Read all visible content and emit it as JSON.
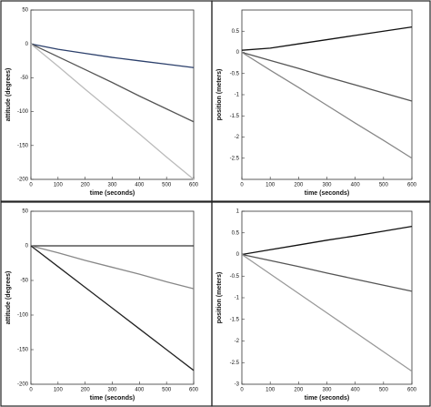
{
  "chart_data": [
    {
      "type": "line",
      "y_label": "attitude (degrees)",
      "x_label": "time (seconds)",
      "x": [
        0,
        100,
        200,
        300,
        400,
        500,
        600
      ],
      "xlim": [
        0,
        600
      ],
      "xticks": [
        0,
        100,
        200,
        300,
        400,
        500,
        600
      ],
      "ylim": [
        -200,
        50
      ],
      "yticks": [
        50,
        0,
        -50,
        -100,
        -150,
        -200
      ],
      "series": [
        {
          "color": "#2b3f6b",
          "values": [
            0,
            -8,
            -14,
            -20,
            -25,
            -30,
            -35
          ]
        },
        {
          "color": "#555555",
          "values": [
            0,
            -19,
            -38,
            -57,
            -77,
            -96,
            -115
          ]
        },
        {
          "color": "#bbbbbb",
          "values": [
            0,
            -33,
            -67,
            -100,
            -133,
            -167,
            -200
          ]
        }
      ]
    },
    {
      "type": "line",
      "y_label": "position (meters)",
      "x_label": "time (seconds)",
      "x": [
        0,
        100,
        200,
        300,
        400,
        500,
        600
      ],
      "xlim": [
        0,
        600
      ],
      "xticks": [
        0,
        100,
        200,
        300,
        400,
        500,
        600
      ],
      "ylim": [
        -3,
        1
      ],
      "yticks": [
        0.5,
        0,
        -0.5,
        -1,
        -1.5,
        -2,
        -2.5
      ],
      "series": [
        {
          "color": "#111111",
          "values": [
            0.05,
            0.1,
            0.2,
            0.3,
            0.4,
            0.5,
            0.6
          ]
        },
        {
          "color": "#555555",
          "values": [
            0,
            -0.19,
            -0.38,
            -0.58,
            -0.77,
            -0.96,
            -1.15
          ]
        },
        {
          "color": "#888888",
          "values": [
            0,
            -0.42,
            -0.83,
            -1.25,
            -1.67,
            -2.08,
            -2.5
          ]
        }
      ]
    },
    {
      "type": "line",
      "y_label": "attitude (degrees)",
      "x_label": "time (seconds)",
      "x": [
        0,
        100,
        200,
        300,
        400,
        500,
        600
      ],
      "xlim": [
        0,
        600
      ],
      "xticks": [
        0,
        100,
        200,
        300,
        400,
        500,
        600
      ],
      "ylim": [
        -200,
        50
      ],
      "yticks": [
        50,
        0,
        -50,
        -100,
        -150,
        -200
      ],
      "series": [
        {
          "color": "#333333",
          "values": [
            0,
            0,
            0,
            0,
            0,
            0,
            0
          ]
        },
        {
          "color": "#888888",
          "values": [
            0,
            -10,
            -21,
            -31,
            -41,
            -52,
            -62
          ]
        },
        {
          "color": "#222222",
          "values": [
            0,
            -30,
            -60,
            -90,
            -120,
            -150,
            -180
          ]
        }
      ]
    },
    {
      "type": "line",
      "y_label": "position (meters)",
      "x_label": "time (seconds)",
      "x": [
        0,
        100,
        200,
        300,
        400,
        500,
        600
      ],
      "xlim": [
        0,
        600
      ],
      "xticks": [
        0,
        100,
        200,
        300,
        400,
        500,
        600
      ],
      "ylim": [
        -3,
        1
      ],
      "yticks": [
        1,
        0.5,
        0,
        -0.5,
        -1,
        -1.5,
        -2,
        -2.5,
        -3
      ],
      "series": [
        {
          "color": "#111111",
          "values": [
            0,
            0.11,
            0.22,
            0.33,
            0.43,
            0.54,
            0.65
          ]
        },
        {
          "color": "#555555",
          "values": [
            0,
            -0.14,
            -0.28,
            -0.43,
            -0.57,
            -0.71,
            -0.85
          ]
        },
        {
          "color": "#999999",
          "values": [
            0,
            -0.45,
            -0.9,
            -1.35,
            -1.8,
            -2.25,
            -2.7
          ]
        }
      ]
    }
  ]
}
